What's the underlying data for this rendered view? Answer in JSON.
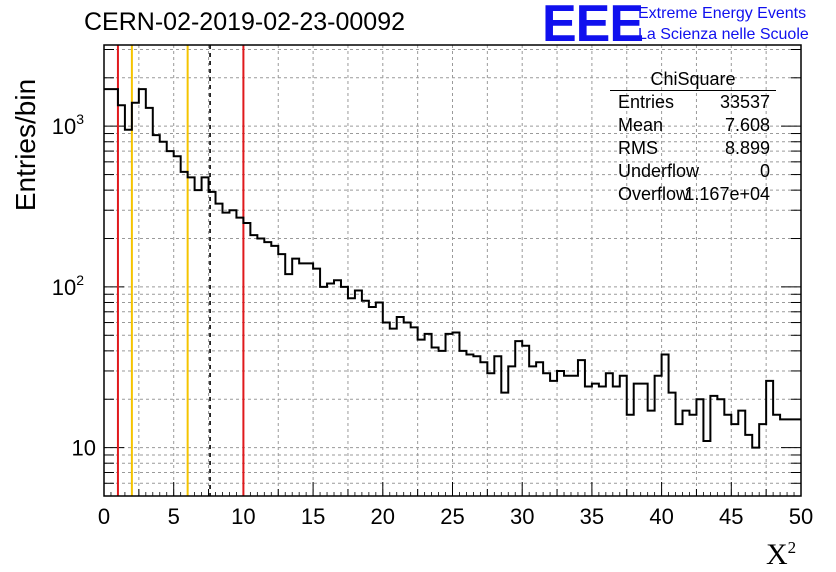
{
  "chart_data": {
    "type": "step",
    "title": "CERN-02-2019-02-23-00092",
    "xlabel": "X",
    "xlabel_sup": "2",
    "ylabel": "Entries/bin",
    "xlim": [
      0,
      50
    ],
    "ylim": [
      5,
      3200
    ],
    "yscale": "log",
    "grid": true,
    "bin_width": 0.5,
    "x_ticks": [
      "0",
      "5",
      "10",
      "15",
      "20",
      "25",
      "30",
      "35",
      "40",
      "45",
      "50"
    ],
    "y_ticks": [
      {
        "value": 10,
        "base": "10",
        "exp": ""
      },
      {
        "value": 100,
        "base": "10",
        "exp": "2"
      },
      {
        "value": 1000,
        "base": "10",
        "exp": "3"
      }
    ],
    "values": [
      1700,
      1700,
      1350,
      950,
      1400,
      1700,
      1300,
      880,
      800,
      700,
      650,
      520,
      480,
      400,
      480,
      390,
      330,
      290,
      300,
      270,
      250,
      210,
      200,
      190,
      180,
      160,
      120,
      150,
      140,
      140,
      130,
      100,
      105,
      110,
      100,
      85,
      95,
      82,
      75,
      80,
      60,
      55,
      65,
      60,
      56,
      47,
      51,
      42,
      40,
      51,
      52,
      40,
      38,
      37,
      34,
      29,
      37,
      22,
      32,
      46,
      43,
      32,
      34,
      29,
      26,
      30,
      28,
      28,
      35,
      24,
      25,
      24,
      29,
      24,
      28,
      16,
      25,
      25,
      17,
      28,
      38,
      22,
      14,
      17,
      16,
      20,
      11,
      21,
      20,
      16,
      14,
      17,
      12,
      10,
      14,
      26,
      16,
      15,
      15,
      15
    ],
    "vertical_lines": [
      {
        "x": 1,
        "color": "#e0191c",
        "style": "solid"
      },
      {
        "x": 2,
        "color": "#f5c400",
        "style": "solid"
      },
      {
        "x": 6,
        "color": "#f5c400",
        "style": "solid"
      },
      {
        "x": 7.608,
        "color": "#000000",
        "style": "dashed"
      },
      {
        "x": 10,
        "color": "#e0191c",
        "style": "solid"
      }
    ],
    "stats_box": {
      "title": "ChiSquare",
      "rows": [
        {
          "label": "Entries",
          "value": "33537"
        },
        {
          "label": "Mean",
          "value": "7.608"
        },
        {
          "label": "RMS",
          "value": "8.899"
        },
        {
          "label": "Underflow",
          "value": "0"
        },
        {
          "label": "Overflow",
          "value": "1.167e+04"
        }
      ]
    }
  },
  "logo": {
    "mark": "EEE",
    "line1": "Extreme Energy Events",
    "line2": "La Scienza nelle Scuole",
    "color": "#1010ee"
  }
}
